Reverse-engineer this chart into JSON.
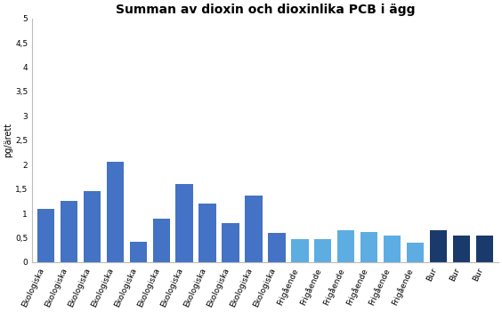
{
  "title": "Summan av dioxin och dioxinlika PCB i ägg",
  "ylabel": "pg/ärett",
  "ylim": [
    0,
    5
  ],
  "yticks": [
    0,
    0.5,
    1,
    1.5,
    2,
    2.5,
    3,
    3.5,
    4,
    4.5,
    5
  ],
  "ytick_labels": [
    "0",
    "0,5",
    "1",
    "1,5",
    "2",
    "2,5",
    "3",
    "3,5",
    "4",
    "4,5",
    "5"
  ],
  "categories": [
    "Ekologiska",
    "Ekologiska",
    "Ekologiska",
    "Ekologiska",
    "Ekologiska",
    "Ekologiska",
    "Ekologiska",
    "Ekologiska",
    "Ekologiska",
    "Ekologiska",
    "Ekologiska",
    "Frigående",
    "Frigående",
    "Frigående",
    "Frigående",
    "Frigående",
    "Frigående",
    "Bur",
    "Bur",
    "Bur"
  ],
  "values": [
    1.1,
    1.25,
    1.45,
    2.05,
    0.42,
    0.9,
    1.6,
    1.2,
    0.8,
    1.37,
    0.6,
    0.47,
    0.47,
    0.65,
    0.62,
    0.55,
    0.4,
    0.65,
    0.55,
    0.55
  ],
  "colors": [
    "#4472C4",
    "#4472C4",
    "#4472C4",
    "#4472C4",
    "#4472C4",
    "#4472C4",
    "#4472C4",
    "#4472C4",
    "#4472C4",
    "#4472C4",
    "#4472C4",
    "#5DADE2",
    "#5DADE2",
    "#5DADE2",
    "#5DADE2",
    "#5DADE2",
    "#5DADE2",
    "#1A3A6B",
    "#1A3A6B",
    "#1A3A6B"
  ],
  "background_color": "#ffffff",
  "title_fontsize": 10,
  "ylabel_fontsize": 7,
  "tick_fontsize": 6.5,
  "bar_width": 0.75
}
